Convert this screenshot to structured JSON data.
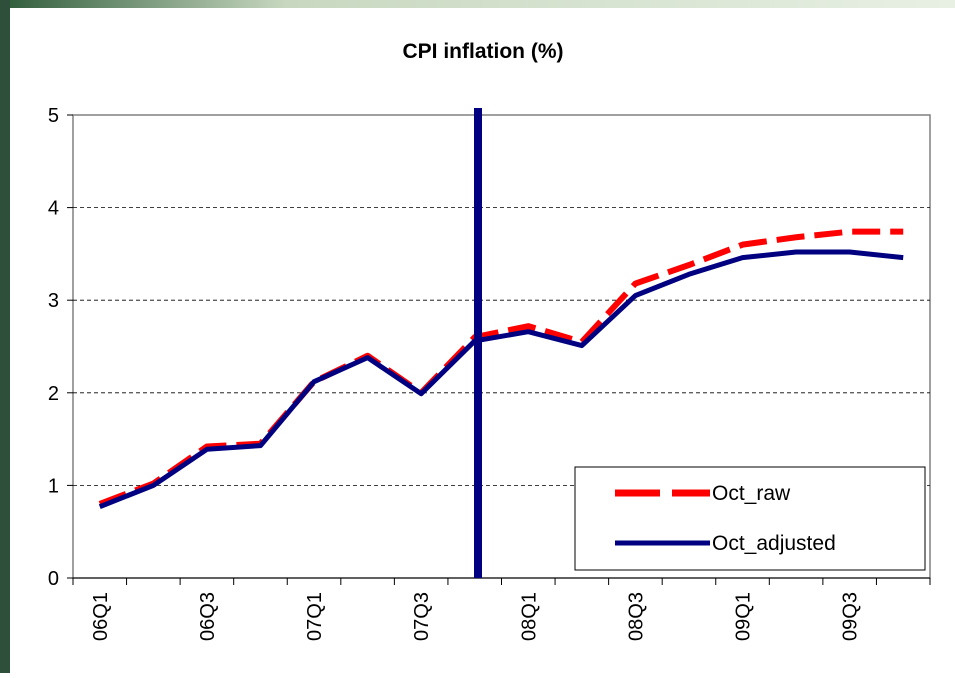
{
  "chart_data": {
    "type": "line",
    "title": "CPI inflation (%)",
    "categories": [
      "06Q1",
      null,
      "06Q3",
      null,
      "07Q1",
      null,
      "07Q3",
      null,
      "08Q1",
      null,
      "08Q3",
      null,
      "09Q1",
      null,
      "09Q3",
      null
    ],
    "series": [
      {
        "name": "Oct_raw",
        "color": "#ff0000",
        "dashed": true,
        "values": [
          0.8,
          1.02,
          1.42,
          1.45,
          2.12,
          2.4,
          2.0,
          2.6,
          2.72,
          2.55,
          3.18,
          3.38,
          3.6,
          3.68,
          3.74,
          3.74
        ]
      },
      {
        "name": "Oct_adjusted",
        "color": "#000080",
        "dashed": false,
        "values": [
          0.77,
          1.0,
          1.39,
          1.43,
          2.12,
          2.38,
          1.99,
          2.56,
          2.66,
          2.51,
          3.05,
          3.28,
          3.46,
          3.52,
          3.52,
          3.46
        ]
      }
    ],
    "ylim": [
      0,
      5
    ],
    "yticks": [
      0,
      1,
      2,
      3,
      4,
      5
    ],
    "grid": true,
    "legend": "lower right"
  }
}
